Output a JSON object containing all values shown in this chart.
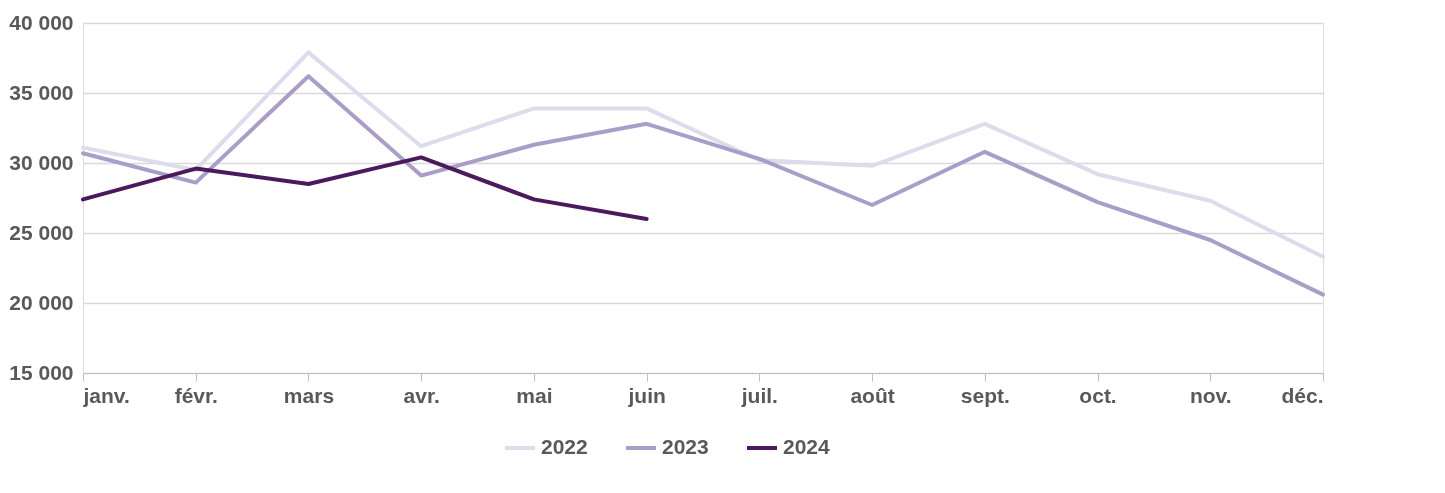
{
  "chart_data": {
    "type": "line",
    "categories": [
      "janv.",
      "févr.",
      "mars",
      "avr.",
      "mai",
      "juin",
      "juil.",
      "août",
      "sept.",
      "oct.",
      "nov.",
      "déc."
    ],
    "series": [
      {
        "name": "2022",
        "color": "#dedbec",
        "values": [
          31100,
          29500,
          37900,
          31200,
          33900,
          33900,
          30200,
          29800,
          32800,
          29200,
          27300,
          23300
        ]
      },
      {
        "name": "2023",
        "color": "#aa9ec9",
        "values": [
          30700,
          28600,
          36200,
          29100,
          31300,
          32800,
          30300,
          27000,
          30800,
          27200,
          24500,
          20600
        ]
      },
      {
        "name": "2024",
        "color": "#4b1a5c",
        "values": [
          27400,
          29600,
          28500,
          30400,
          27400,
          26000,
          null,
          null,
          null,
          null,
          null,
          null
        ]
      }
    ],
    "ylim": [
      15000,
      40000
    ],
    "yticks": [
      {
        "value": 15000,
        "label": "15 000"
      },
      {
        "value": 20000,
        "label": "20 000"
      },
      {
        "value": 25000,
        "label": "25 000"
      },
      {
        "value": 30000,
        "label": "30 000"
      },
      {
        "value": 35000,
        "label": "35 000"
      },
      {
        "value": 40000,
        "label": "40 000"
      }
    ],
    "grid": "y",
    "legend": "bottom",
    "marker": "none",
    "line_style": "solid"
  }
}
